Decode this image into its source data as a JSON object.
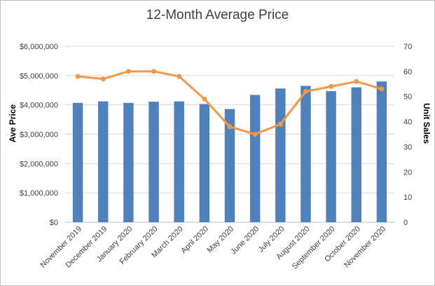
{
  "chart_data": {
    "type": "bar",
    "title": "12-Month Average Price",
    "categories": [
      "November 2019",
      "December 2019",
      "January 2020",
      "February 2020",
      "March 2020",
      "April 2020",
      "May 2020",
      "June 2020",
      "July 2020",
      "August 2020",
      "September 2020",
      "October 2020",
      "November 2020"
    ],
    "series": [
      {
        "type": "bar",
        "axis": "left",
        "color": "#4f81bd",
        "values": [
          4070000,
          4120000,
          4070000,
          4110000,
          4120000,
          4030000,
          3860000,
          4340000,
          4560000,
          4650000,
          4470000,
          4600000,
          4800000
        ]
      },
      {
        "type": "line",
        "axis": "right",
        "color": "#f79646",
        "values": [
          58,
          57,
          60,
          60,
          58,
          49,
          38,
          35,
          39,
          52,
          54,
          56,
          53
        ]
      }
    ],
    "ylabel": "Ave Price",
    "y2label": "Unit Sales",
    "ylim": [
      0,
      6000000
    ],
    "y2lim": [
      0,
      70
    ],
    "yticks": [
      "$0",
      "$1,000,000",
      "$2,000,000",
      "$3,000,000",
      "$4,000,000",
      "$5,000,000",
      "$6,000,000"
    ],
    "y2ticks": [
      "0",
      "10",
      "20",
      "30",
      "40",
      "50",
      "60",
      "70"
    ],
    "grid": true,
    "legend": "none"
  }
}
